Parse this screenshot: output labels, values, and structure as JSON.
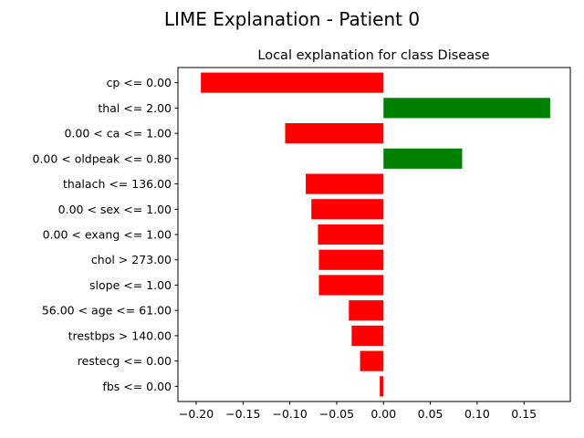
{
  "figure": {
    "suptitle": "LIME Explanation - Patient 0"
  },
  "chart_data": {
    "type": "bar",
    "orientation": "horizontal",
    "title": "Local explanation for class Disease",
    "xlabel": "",
    "ylabel": "",
    "categories": [
      "cp <= 0.00",
      "thal <= 2.00",
      "0.00 < ca <= 1.00",
      "0.00 < oldpeak <= 0.80",
      "thalach <= 136.00",
      "0.00 < sex <= 1.00",
      "0.00 < exang <= 1.00",
      "chol > 273.00",
      "slope <= 1.00",
      "56.00 < age <= 61.00",
      "trestbps > 140.00",
      "restecg <= 0.00",
      "fbs <= 0.00"
    ],
    "values": [
      -0.195,
      0.178,
      -0.105,
      0.084,
      -0.083,
      -0.077,
      -0.07,
      -0.069,
      -0.069,
      -0.037,
      -0.034,
      -0.025,
      -0.004
    ],
    "xlim": [
      -0.2195,
      0.1995
    ],
    "xticks": [
      -0.2,
      -0.15,
      -0.1,
      -0.05,
      0.0,
      0.05,
      0.1,
      0.15
    ],
    "xtick_labels": [
      "−0.20",
      "−0.15",
      "−0.10",
      "−0.05",
      "0.00",
      "0.05",
      "0.10",
      "0.15"
    ],
    "colors": {
      "positive": "#008000",
      "negative": "#ff0000",
      "axis": "#000000"
    },
    "grid": false,
    "legend": "none"
  }
}
